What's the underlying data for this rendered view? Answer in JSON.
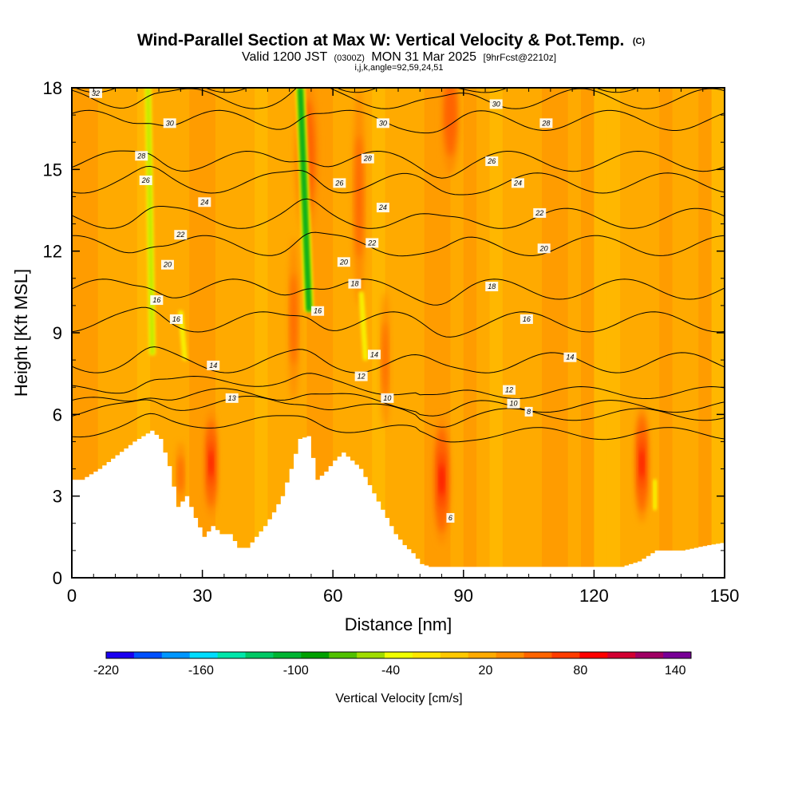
{
  "chart_data": {
    "type": "heatmap",
    "title": {
      "main": "Wind-Parallel Section at Max W: Vertical Velocity & Pot.Temp.",
      "main_suffix": "(C)",
      "valid_prefix": "Valid 1200 JST",
      "valid_zulu": "(0300Z)",
      "valid_date": "MON 31 Mar 2025",
      "valid_fcst": "[9hrFcst@2210z]",
      "indices": "i,j,k,angle=92,59,24,51"
    },
    "xlabel": "Distance [nm]",
    "ylabel": "Height [Kft MSL]",
    "xlim": [
      0,
      150
    ],
    "ylim": [
      0,
      18
    ],
    "x_ticks": [
      0,
      30,
      60,
      90,
      120,
      150
    ],
    "y_ticks": [
      0,
      3,
      6,
      9,
      12,
      15,
      18
    ],
    "colorbar": {
      "label": "Vertical Velocity [cm/s]",
      "tick_labels": [
        "-220",
        "-160",
        "-100",
        "-40",
        "20",
        "80",
        "140"
      ],
      "tick_values": [
        -220,
        -160,
        -100,
        -40,
        20,
        80,
        140
      ],
      "range": [
        -220,
        150
      ],
      "colors": [
        "#1a00f0",
        "#0050ff",
        "#0096ff",
        "#00dcff",
        "#00e6aa",
        "#00c864",
        "#00b432",
        "#00a000",
        "#50c000",
        "#a0dc00",
        "#f0ff00",
        "#ffe600",
        "#ffc800",
        "#ffaa00",
        "#ff8c00",
        "#ff6400",
        "#ff3c00",
        "#ff0000",
        "#d20032",
        "#a00064",
        "#780096"
      ]
    },
    "background_level": 20,
    "terrain_profile": {
      "x": [
        0,
        2,
        6,
        10,
        14,
        18,
        20,
        22,
        24,
        26,
        28,
        30,
        32,
        34,
        36,
        38,
        40,
        42,
        44,
        46,
        48,
        50,
        52,
        54,
        56,
        58,
        60,
        62,
        64,
        66,
        68,
        70,
        72,
        74,
        76,
        78,
        80,
        82,
        84,
        86,
        88,
        90,
        100,
        110,
        120,
        126,
        130,
        134,
        140,
        146,
        150
      ],
      "height_kft": [
        3.6,
        3.6,
        4.0,
        4.5,
        5.0,
        5.4,
        5.1,
        4.1,
        2.6,
        3.0,
        2.2,
        1.5,
        1.9,
        1.6,
        1.6,
        1.1,
        1.1,
        1.5,
        1.9,
        2.4,
        3.0,
        4.0,
        5.1,
        5.2,
        3.6,
        3.9,
        4.3,
        4.6,
        4.3,
        4.0,
        3.4,
        2.8,
        2.2,
        1.6,
        1.2,
        0.9,
        0.5,
        0.4,
        0.4,
        0.4,
        0.4,
        0.4,
        0.4,
        0.4,
        0.4,
        0.4,
        0.6,
        1.0,
        1.0,
        1.2,
        1.3
      ]
    },
    "updrafts": [
      {
        "x": 32,
        "y": 4.2,
        "w": 1.4,
        "h": 2.0,
        "value": 90
      },
      {
        "x": 85,
        "y": 3.6,
        "w": 1.8,
        "h": 2.4,
        "value": 90
      },
      {
        "x": 131,
        "y": 4.2,
        "w": 1.5,
        "h": 2.2,
        "value": 95
      },
      {
        "x": 54,
        "y": 15.5,
        "w": 2.6,
        "h": 3.0,
        "value": 60
      },
      {
        "x": 87,
        "y": 17.0,
        "w": 2.0,
        "h": 2.2,
        "value": 65
      },
      {
        "x": 66,
        "y": 14.0,
        "w": 1.4,
        "h": 4.0,
        "value": 45
      },
      {
        "x": 51,
        "y": 9.5,
        "w": 1.2,
        "h": 3.0,
        "value": 55
      },
      {
        "x": 25,
        "y": 3.8,
        "w": 1.0,
        "h": 1.2,
        "value": 55
      },
      {
        "x": 72,
        "y": 8.0,
        "w": 1.0,
        "h": 2.5,
        "value": 45
      }
    ],
    "downdraft_streaks": [
      {
        "x_bottom": 18.5,
        "y_bottom": 8.2,
        "x_top": 17.5,
        "y_top": 18.0,
        "width": 1.3,
        "value": -70
      },
      {
        "x_bottom": 54.5,
        "y_bottom": 9.8,
        "x_top": 52.5,
        "y_top": 18.0,
        "width": 2.0,
        "value": -100
      },
      {
        "x_bottom": 26.0,
        "y_bottom": 8.0,
        "x_top": 25.0,
        "y_top": 9.8,
        "width": 0.9,
        "value": -50
      },
      {
        "x_bottom": 67.5,
        "y_bottom": 8.0,
        "x_top": 66.5,
        "y_top": 10.5,
        "width": 0.9,
        "value": -45
      },
      {
        "x_bottom": 134.0,
        "y_bottom": 2.5,
        "x_top": 134.0,
        "y_top": 3.6,
        "width": 0.8,
        "value": -55
      }
    ],
    "contours": [
      {
        "level": 6,
        "base_y": 5.3
      },
      {
        "level": 8,
        "base_y": 6.0
      },
      {
        "level": 10,
        "base_y": 6.3
      },
      {
        "level": 12,
        "base_y": 6.8
      },
      {
        "level": 14,
        "base_y": 7.9
      },
      {
        "level": 16,
        "base_y": 9.4
      },
      {
        "level": 18,
        "base_y": 10.6
      },
      {
        "level": 20,
        "base_y": 12.2
      },
      {
        "level": 22,
        "base_y": 13.2
      },
      {
        "level": 24,
        "base_y": 14.5
      },
      {
        "level": 26,
        "base_y": 15.3
      },
      {
        "level": 28,
        "base_y": 16.8
      },
      {
        "level": 30,
        "base_y": 17.6
      },
      {
        "level": 32,
        "base_y": 18.2
      }
    ],
    "contour_labels": [
      {
        "text": "32",
        "x": 5.5,
        "y": 17.8
      },
      {
        "text": "30",
        "x": 22.5,
        "y": 16.7
      },
      {
        "text": "30",
        "x": 71.5,
        "y": 16.7
      },
      {
        "text": "30",
        "x": 97.5,
        "y": 17.4
      },
      {
        "text": "28",
        "x": 16.0,
        "y": 15.5
      },
      {
        "text": "28",
        "x": 68.0,
        "y": 15.4
      },
      {
        "text": "28",
        "x": 109.0,
        "y": 16.7
      },
      {
        "text": "26",
        "x": 17.0,
        "y": 14.6
      },
      {
        "text": "26",
        "x": 61.5,
        "y": 14.5
      },
      {
        "text": "26",
        "x": 96.5,
        "y": 15.3
      },
      {
        "text": "24",
        "x": 30.5,
        "y": 13.8
      },
      {
        "text": "24",
        "x": 71.5,
        "y": 13.6
      },
      {
        "text": "24",
        "x": 102.5,
        "y": 14.5
      },
      {
        "text": "22",
        "x": 25.0,
        "y": 12.6
      },
      {
        "text": "22",
        "x": 69.0,
        "y": 12.3
      },
      {
        "text": "22",
        "x": 107.5,
        "y": 13.4
      },
      {
        "text": "20",
        "x": 22.0,
        "y": 11.5
      },
      {
        "text": "20",
        "x": 62.5,
        "y": 11.6
      },
      {
        "text": "20",
        "x": 108.5,
        "y": 12.1
      },
      {
        "text": "18",
        "x": 65.0,
        "y": 10.8
      },
      {
        "text": "18",
        "x": 96.5,
        "y": 10.7
      },
      {
        "text": "16",
        "x": 19.5,
        "y": 10.2
      },
      {
        "text": "16",
        "x": 56.5,
        "y": 9.8
      },
      {
        "text": "16",
        "x": 104.5,
        "y": 9.5
      },
      {
        "text": "16",
        "x": 24.0,
        "y": 9.5
      },
      {
        "text": "14",
        "x": 32.5,
        "y": 7.8
      },
      {
        "text": "14",
        "x": 69.5,
        "y": 8.2
      },
      {
        "text": "14",
        "x": 114.5,
        "y": 8.1
      },
      {
        "text": "12",
        "x": 66.5,
        "y": 7.4
      },
      {
        "text": "12",
        "x": 100.5,
        "y": 6.9
      },
      {
        "text": "13",
        "x": 36.8,
        "y": 6.6
      },
      {
        "text": "10",
        "x": 72.5,
        "y": 6.6
      },
      {
        "text": "10",
        "x": 101.5,
        "y": 6.4
      },
      {
        "text": "8",
        "x": 105.0,
        "y": 6.1
      },
      {
        "text": "6",
        "x": 87.0,
        "y": 2.2
      }
    ]
  }
}
